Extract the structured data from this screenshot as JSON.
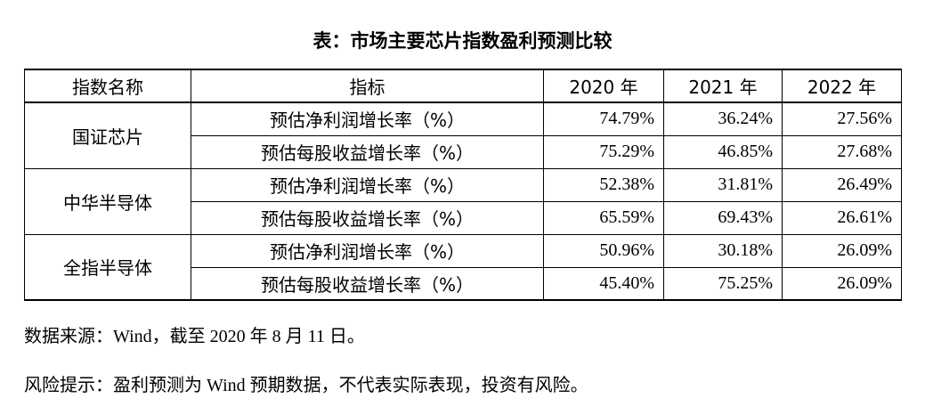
{
  "title": "表：市场主要芯片指数盈利预测比较",
  "table": {
    "header": [
      "指数名称",
      "指标",
      "2020 年",
      "2021 年",
      "2022 年"
    ],
    "groups": [
      {
        "name": "国证芯片",
        "rows": [
          {
            "indicator": "预估净利润增长率（%）",
            "values": [
              "74.79%",
              "36.24%",
              "27.56%"
            ]
          },
          {
            "indicator": "预估每股收益增长率（%）",
            "values": [
              "75.29%",
              "46.85%",
              "27.68%"
            ]
          }
        ]
      },
      {
        "name": "中华半导体",
        "rows": [
          {
            "indicator": "预估净利润增长率（%）",
            "values": [
              "52.38%",
              "31.81%",
              "26.49%"
            ]
          },
          {
            "indicator": "预估每股收益增长率（%）",
            "values": [
              "65.59%",
              "69.43%",
              "26.61%"
            ]
          }
        ]
      },
      {
        "name": "全指半导体",
        "rows": [
          {
            "indicator": "预估净利润增长率（%）",
            "values": [
              "50.96%",
              "30.18%",
              "26.09%"
            ]
          },
          {
            "indicator": "预估每股收益增长率（%）",
            "values": [
              "45.40%",
              "75.25%",
              "26.09%"
            ]
          }
        ]
      }
    ]
  },
  "notes": [
    "数据来源：Wind，截至 2020 年 8 月 11 日。",
    "风险提示：盈利预测为 Wind 预期数据，不代表实际表现，投资有风险。"
  ]
}
